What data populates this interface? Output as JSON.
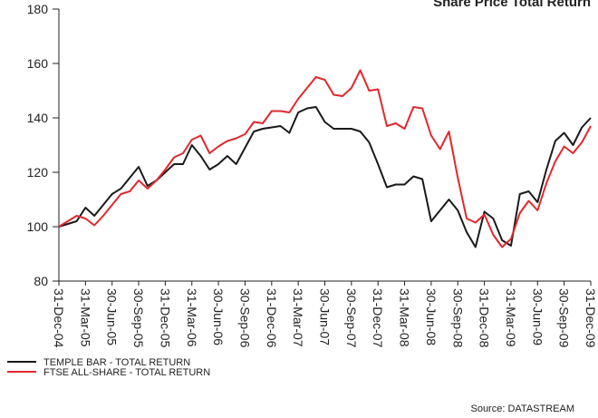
{
  "chart_data": {
    "type": "line",
    "title": "Share Price Total Return",
    "source": "Source: DATASTREAM",
    "categories": [
      "31-Dec-04",
      null,
      null,
      "31-Mar-05",
      null,
      null,
      "30-Jun-05",
      null,
      null,
      "30-Sep-05",
      null,
      null,
      "31-Dec-05",
      null,
      null,
      "31-Mar-06",
      null,
      null,
      "30-Jun-06",
      null,
      null,
      "30-Sep-06",
      null,
      null,
      "31-Dec-06",
      null,
      null,
      "31-Mar-07",
      null,
      null,
      "30-Jun-07",
      null,
      null,
      "30-Sep-07",
      null,
      null,
      "31-Dec-07",
      null,
      null,
      "31-Mar-08",
      null,
      null,
      "30-Jun-08",
      null,
      null,
      "30-Sep-08",
      null,
      null,
      "31-Dec-08",
      null,
      null,
      "31-Mar-09",
      null,
      null,
      "30-Jun-09",
      null,
      null,
      "30-Sep-09",
      null,
      null,
      "31-Dec-09"
    ],
    "series": [
      {
        "name": "TEMPLE BAR - TOTAL RETURN",
        "color": "#1a1a1a",
        "values": [
          100,
          101,
          102,
          107,
          104,
          108,
          112,
          114,
          118,
          122,
          115,
          117,
          120,
          123,
          123,
          130,
          126,
          121,
          123,
          126,
          123,
          129,
          135,
          136,
          136.5,
          137,
          134.5,
          142,
          143.5,
          144,
          138.5,
          136,
          136,
          136,
          135,
          131,
          123,
          114.5,
          115.5,
          115.5,
          118.5,
          117.5,
          102,
          106,
          110,
          106,
          98,
          92.5,
          105.5,
          103,
          95,
          93,
          112,
          113,
          109,
          121,
          131.5,
          134.5,
          130,
          136.5,
          140
        ]
      },
      {
        "name": "FTSE ALL-SHARE - TOTAL RETURN",
        "color": "#e0282e",
        "values": [
          100,
          102,
          104,
          103,
          100.5,
          104,
          108,
          112,
          113,
          117,
          114,
          117,
          121,
          125.5,
          127,
          132,
          133.5,
          127,
          129.5,
          131.5,
          132.5,
          134,
          138.5,
          138,
          142.5,
          142.5,
          142,
          147,
          151,
          155,
          154,
          148.5,
          148,
          151,
          157.5,
          150,
          150.5,
          137,
          138,
          136,
          144,
          143.5,
          133.5,
          128.5,
          135,
          118,
          103,
          101.5,
          104.5,
          97,
          92.5,
          95.5,
          105,
          109.5,
          106,
          116,
          124,
          129.5,
          127,
          131,
          137
        ]
      }
    ],
    "ylim": [
      80,
      180
    ],
    "yticks": [
      80,
      100,
      120,
      140,
      160,
      180
    ],
    "grid": false
  }
}
